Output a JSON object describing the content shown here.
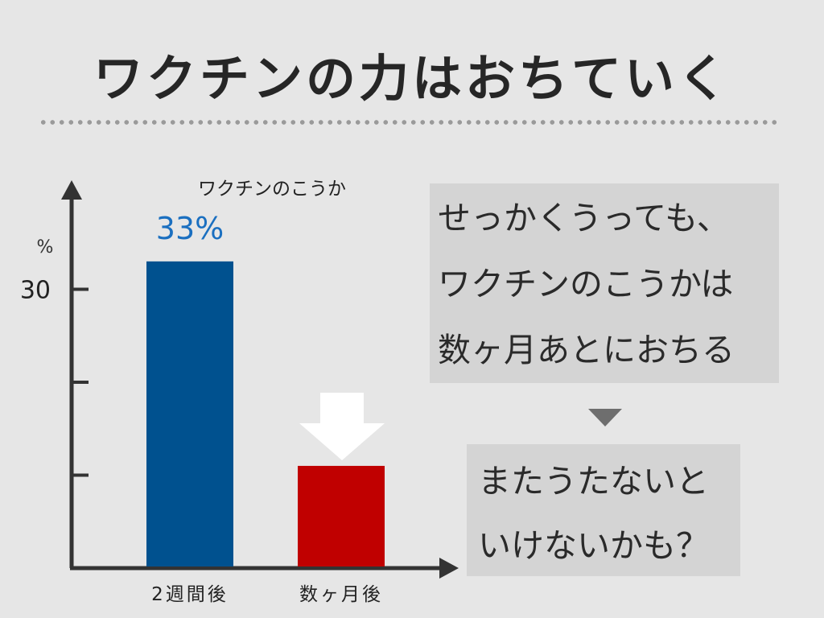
{
  "title": "ワクチンの力はおちていく",
  "chart_data": {
    "type": "bar",
    "title": "ワクチンのこうか",
    "ylabel": "%",
    "categories": [
      "2週間後",
      "数ヶ月後"
    ],
    "values": [
      33,
      11
    ],
    "data_labels": [
      "33%",
      ""
    ],
    "yticks": [
      {
        "value": 10,
        "label": ""
      },
      {
        "value": 20,
        "label": ""
      },
      {
        "value": 30,
        "label": "30"
      }
    ],
    "ylim": [
      0,
      40
    ],
    "colors": [
      "#00518f",
      "#c00000"
    ],
    "grid": false,
    "legend": "none",
    "annotation": "down-arrow-icon"
  },
  "callout1": {
    "lines": [
      "せっかくうっても、",
      "ワクチンのこうかは",
      "数ヶ月あとにおちる"
    ]
  },
  "callout2": {
    "lines": [
      "またうたないと",
      "いけないかも？"
    ]
  },
  "colors": {
    "background": "#e6e6e6",
    "box": "#d4d4d4",
    "label_blue": "#1a6fc0",
    "arrow": "#ffffff",
    "triangle": "#6e6e6e"
  }
}
